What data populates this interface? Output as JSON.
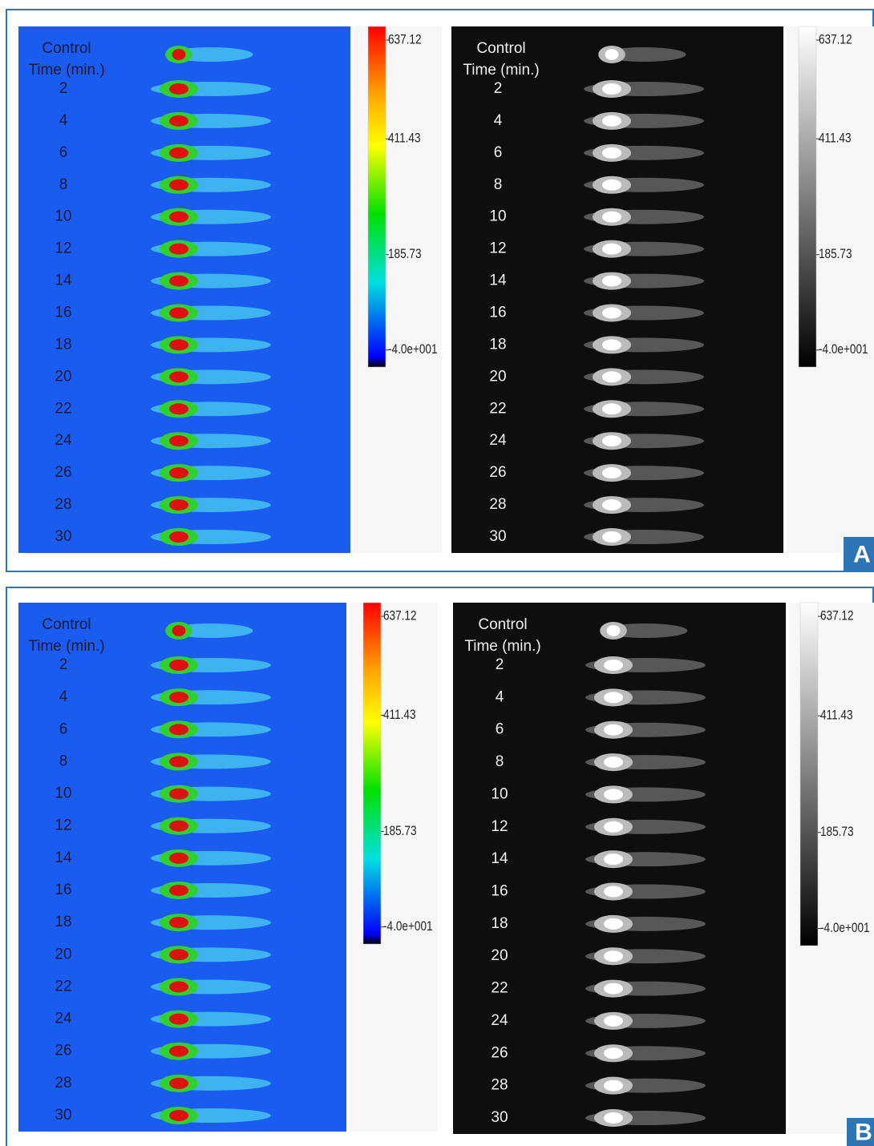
{
  "panels": [
    {
      "letter": "A",
      "images": [
        {
          "style": "color",
          "heading": [
            "Control",
            "Time (min.)"
          ],
          "times": [
            "2",
            "4",
            "6",
            "8",
            "10",
            "12",
            "14",
            "16",
            "18",
            "20",
            "22",
            "24",
            "26",
            "28",
            "30"
          ],
          "scale": [
            "637.12",
            "411.43",
            "185.73",
            "-4.0e+001"
          ]
        },
        {
          "style": "gray",
          "heading": [
            "Control",
            "Time (min.)"
          ],
          "times": [
            "2",
            "4",
            "6",
            "8",
            "10",
            "12",
            "14",
            "16",
            "18",
            "20",
            "22",
            "24",
            "26",
            "28",
            "30"
          ],
          "scale": [
            "637.12",
            "411.43",
            "185.73",
            "-4.0e+001"
          ]
        }
      ]
    },
    {
      "letter": "B",
      "images": [
        {
          "style": "color",
          "heading": [
            "Control",
            "Time (min.)"
          ],
          "times": [
            "2",
            "4",
            "6",
            "8",
            "10",
            "12",
            "14",
            "16",
            "18",
            "20",
            "22",
            "24",
            "26",
            "28",
            "30"
          ],
          "scale": [
            "637.12",
            "411.43",
            "185.73",
            "-4.0e+001"
          ]
        },
        {
          "style": "gray",
          "heading": [
            "Control",
            "Time (min.)"
          ],
          "times": [
            "2",
            "4",
            "6",
            "8",
            "10",
            "12",
            "14",
            "16",
            "18",
            "20",
            "22",
            "24",
            "26",
            "28",
            "30"
          ],
          "scale": [
            "637.12",
            "411.43",
            "185.73",
            "-4.0e+001"
          ]
        }
      ]
    }
  ]
}
